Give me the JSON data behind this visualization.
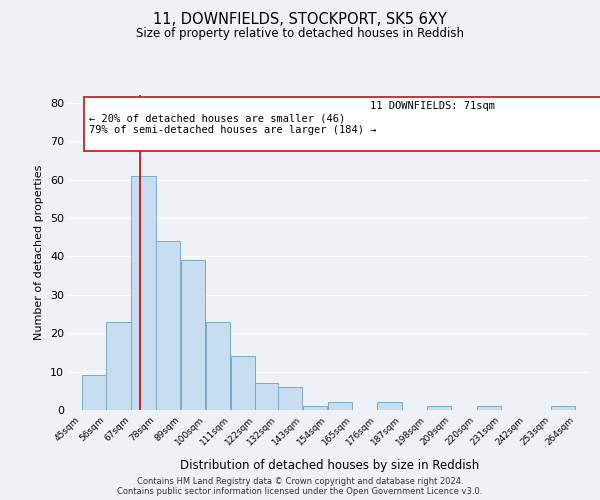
{
  "title": "11, DOWNFIELDS, STOCKPORT, SK5 6XY",
  "subtitle": "Size of property relative to detached houses in Reddish",
  "xlabel": "Distribution of detached houses by size in Reddish",
  "ylabel": "Number of detached properties",
  "bar_edges": [
    45,
    56,
    67,
    78,
    89,
    100,
    111,
    122,
    132,
    143,
    154,
    165,
    176,
    187,
    198,
    209,
    220,
    231,
    242,
    253,
    264
  ],
  "bar_heights": [
    9,
    23,
    61,
    44,
    39,
    23,
    14,
    7,
    6,
    1,
    2,
    0,
    2,
    0,
    1,
    0,
    1,
    0,
    0,
    1
  ],
  "bar_color": "#c8ddef",
  "bar_edge_color": "#7aaac8",
  "property_line_x": 71,
  "property_line_color": "#cc0000",
  "ylim": [
    0,
    82
  ],
  "yticks": [
    0,
    10,
    20,
    30,
    40,
    50,
    60,
    70,
    80
  ],
  "ann_line1": "11 DOWNFIELDS: 71sqm",
  "ann_line2": "← 20% of detached houses are smaller (46)",
  "ann_line3": "79% of semi-detached houses are larger (184) →",
  "footer_line1": "Contains HM Land Registry data © Crown copyright and database right 2024.",
  "footer_line2": "Contains public sector information licensed under the Open Government Licence v3.0.",
  "background_color": "#eef2f7",
  "grid_color": "#ffffff",
  "tick_labels": [
    "45sqm",
    "56sqm",
    "67sqm",
    "78sqm",
    "89sqm",
    "100sqm",
    "111sqm",
    "122sqm",
    "132sqm",
    "143sqm",
    "154sqm",
    "165sqm",
    "176sqm",
    "187sqm",
    "198sqm",
    "209sqm",
    "220sqm",
    "231sqm",
    "242sqm",
    "253sqm",
    "264sqm"
  ]
}
